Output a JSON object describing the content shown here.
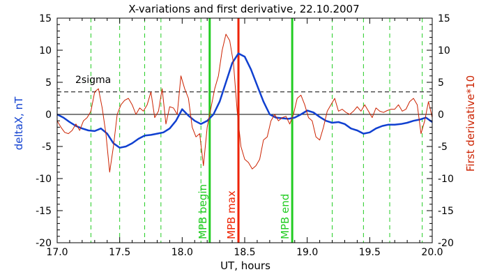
{
  "chart_data": {
    "type": "line",
    "title": "X-variations and first derivative, 22.10.2007",
    "xlabel": "UT, hours",
    "ylabel_left": "deltaX, nT",
    "ylabel_right": "First derivative*10",
    "xlim": [
      17.0,
      20.0
    ],
    "ylim": [
      -20,
      15
    ],
    "x_ticks": [
      "17.0",
      "17.5",
      "18.0",
      "18.5",
      "19.0",
      "19.5",
      "20.0"
    ],
    "y_ticks": [
      "15",
      "10",
      "5",
      "0",
      "-5",
      "-10",
      "-15",
      "-20"
    ],
    "grid": false,
    "colors": {
      "deltaX": "#1040d0",
      "derivative": "#cc2200",
      "markers_green": "#22cc22",
      "marker_red": "#ee2200"
    },
    "sigma_line": {
      "label": "2sigma",
      "y": 3.5
    },
    "zero_line": 0,
    "vlines": [
      {
        "x": 18.22,
        "label": "MPB begin",
        "color": "#22cc22"
      },
      {
        "x": 18.45,
        "label": "MPB max",
        "color": "#ee2200"
      },
      {
        "x": 18.88,
        "label": "MPB end",
        "color": "#22cc22"
      }
    ],
    "dashed_vlines": [
      17.27,
      17.5,
      17.7,
      17.83,
      18.15,
      19.2,
      19.45,
      19.66,
      19.92
    ],
    "series": [
      {
        "key": "deltaX",
        "x": [
          17.0,
          17.05,
          17.1,
          17.15,
          17.2,
          17.25,
          17.3,
          17.35,
          17.4,
          17.45,
          17.5,
          17.55,
          17.6,
          17.65,
          17.7,
          17.75,
          17.8,
          17.85,
          17.9,
          17.95,
          18.0,
          18.05,
          18.1,
          18.15,
          18.2,
          18.25,
          18.3,
          18.35,
          18.4,
          18.45,
          18.5,
          18.55,
          18.6,
          18.65,
          18.7,
          18.75,
          18.8,
          18.85,
          18.9,
          18.95,
          19.0,
          19.05,
          19.1,
          19.15,
          19.2,
          19.25,
          19.3,
          19.35,
          19.4,
          19.45,
          19.5,
          19.55,
          19.6,
          19.65,
          19.7,
          19.75,
          19.8,
          19.85,
          19.9,
          19.95,
          20.0
        ],
        "y": [
          0.0,
          -0.5,
          -1.2,
          -1.8,
          -2.2,
          -2.5,
          -2.6,
          -2.2,
          -3.0,
          -4.5,
          -5.2,
          -5.0,
          -4.5,
          -3.8,
          -3.3,
          -3.2,
          -3.0,
          -2.8,
          -2.2,
          -1.0,
          0.8,
          -0.2,
          -1.0,
          -1.5,
          -1.0,
          0.0,
          2.0,
          5.0,
          8.0,
          9.5,
          9.0,
          7.0,
          4.5,
          2.0,
          0.0,
          -0.5,
          -0.6,
          -0.7,
          -0.5,
          0.0,
          0.6,
          0.3,
          -0.4,
          -1.0,
          -1.3,
          -1.2,
          -1.5,
          -2.2,
          -2.5,
          -3.0,
          -2.8,
          -2.2,
          -1.8,
          -1.6,
          -1.6,
          -1.5,
          -1.3,
          -1.0,
          -0.8,
          -0.5,
          -1.2
        ]
      },
      {
        "key": "derivative",
        "x": [
          17.0,
          17.03,
          17.06,
          17.09,
          17.12,
          17.15,
          17.18,
          17.21,
          17.24,
          17.27,
          17.3,
          17.33,
          17.36,
          17.39,
          17.42,
          17.45,
          17.48,
          17.51,
          17.54,
          17.57,
          17.6,
          17.63,
          17.66,
          17.69,
          17.72,
          17.75,
          17.78,
          17.81,
          17.84,
          17.87,
          17.9,
          17.93,
          17.96,
          17.99,
          18.02,
          18.05,
          18.08,
          18.11,
          18.14,
          18.17,
          18.2,
          18.23,
          18.26,
          18.29,
          18.32,
          18.35,
          18.38,
          18.41,
          18.44,
          18.47,
          18.5,
          18.53,
          18.56,
          18.59,
          18.62,
          18.65,
          18.68,
          18.71,
          18.74,
          18.77,
          18.8,
          18.83,
          18.86,
          18.89,
          18.92,
          18.95,
          18.98,
          19.01,
          19.04,
          19.07,
          19.1,
          19.13,
          19.16,
          19.19,
          19.22,
          19.25,
          19.28,
          19.31,
          19.34,
          19.37,
          19.4,
          19.43,
          19.46,
          19.49,
          19.52,
          19.55,
          19.58,
          19.61,
          19.64,
          19.67,
          19.7,
          19.73,
          19.76,
          19.79,
          19.82,
          19.85,
          19.88,
          19.91,
          19.94,
          19.97,
          20.0
        ],
        "y": [
          -1.0,
          -2.0,
          -2.8,
          -3.0,
          -2.5,
          -1.5,
          -2.5,
          -1.0,
          -0.5,
          0.5,
          3.5,
          4.0,
          1.0,
          -3.0,
          -9.0,
          -5.0,
          0.0,
          1.5,
          2.2,
          2.5,
          1.5,
          0.0,
          1.0,
          0.5,
          1.5,
          3.5,
          -0.5,
          0.5,
          4.0,
          -1.5,
          1.2,
          1.0,
          0.0,
          6.0,
          4.0,
          2.5,
          -2.0,
          -3.5,
          -3.0,
          -8.0,
          -2.0,
          1.0,
          4.0,
          6.0,
          10.0,
          12.5,
          11.5,
          8.0,
          0.5,
          -5.0,
          -7.0,
          -7.5,
          -8.5,
          -8.0,
          -7.0,
          -4.0,
          -3.5,
          -1.0,
          0.0,
          -1.0,
          -0.5,
          -0.3,
          -1.5,
          0.0,
          2.5,
          3.0,
          1.5,
          -0.5,
          -1.0,
          -3.5,
          -4.0,
          -2.0,
          0.5,
          1.5,
          2.5,
          0.5,
          0.8,
          0.3,
          0.0,
          0.5,
          1.2,
          0.5,
          1.5,
          0.5,
          -0.5,
          1.0,
          0.5,
          0.3,
          0.6,
          0.8,
          0.8,
          1.5,
          0.5,
          0.8,
          2.0,
          2.5,
          1.5,
          -3.0,
          -1.0,
          2.0,
          -0.5
        ]
      }
    ]
  }
}
